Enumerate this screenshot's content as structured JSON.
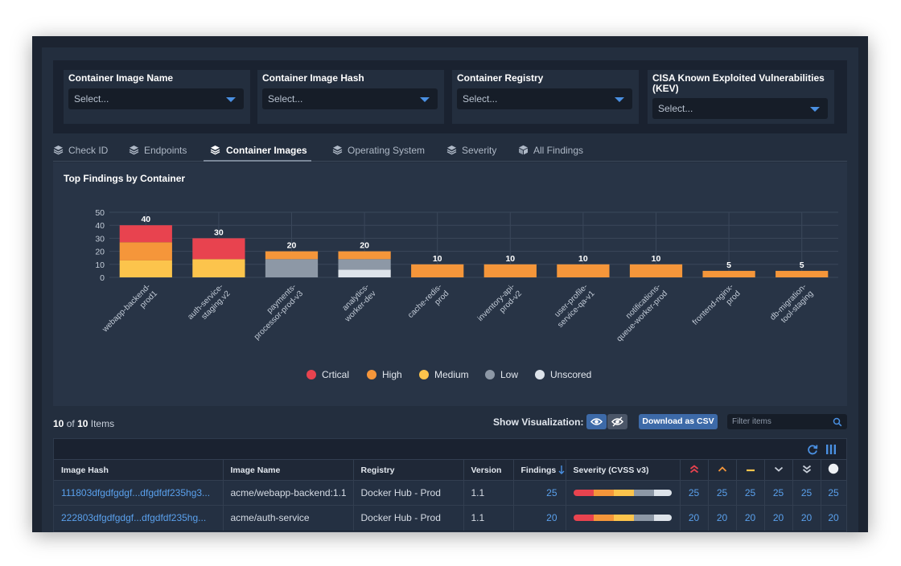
{
  "filters": [
    {
      "label": "Container Image Name",
      "placeholder": "Select..."
    },
    {
      "label": "Container Image Hash",
      "placeholder": "Select..."
    },
    {
      "label": "Container Registry",
      "placeholder": "Select..."
    },
    {
      "label": "CISA Known Exploited Vulnerabilities (KEV)",
      "placeholder": "Select..."
    }
  ],
  "tabs": [
    {
      "label": "Check ID",
      "icon": "layers-icon"
    },
    {
      "label": "Endpoints",
      "icon": "layers-icon"
    },
    {
      "label": "Container Images",
      "icon": "layers-icon",
      "active": true
    },
    {
      "label": "Operating System",
      "icon": "layers-icon"
    },
    {
      "label": "Severity",
      "icon": "layers-icon"
    },
    {
      "label": "All Findings",
      "icon": "cube-icon"
    }
  ],
  "chart_panel": {
    "title": "Top Findings by Container"
  },
  "chart_data": {
    "type": "bar",
    "stacked": true,
    "title": "Top Findings by Container",
    "categories": [
      "webapp-backend-prod1",
      "auth-service-staging.v2",
      "payments-processor-prod-v3",
      "analytics-worker-dev",
      "cache-redis-prod",
      "inventory-api-prod-v2",
      "user-profile-service-qa-v1",
      "notifications-queue-worker-prod",
      "frontend-nginx-prod",
      "db-migration-tool-staging"
    ],
    "totals": [
      40,
      30,
      20,
      20,
      10,
      10,
      10,
      10,
      5,
      5
    ],
    "series": [
      {
        "name": "Medium",
        "color": "#fcc44c",
        "values": [
          13,
          14,
          0,
          0,
          0,
          0,
          0,
          0,
          0,
          0
        ]
      },
      {
        "name": "Unscored",
        "color": "#dde3ea",
        "values": [
          0,
          0,
          0,
          6,
          0,
          0,
          0,
          0,
          0,
          0
        ]
      },
      {
        "name": "Low",
        "color": "#8d98a6",
        "values": [
          0,
          0,
          14,
          8,
          0,
          0,
          0,
          0,
          0,
          0
        ]
      },
      {
        "name": "High",
        "color": "#f5963a",
        "values": [
          14,
          0,
          6,
          6,
          10,
          10,
          10,
          10,
          5,
          5
        ]
      },
      {
        "name": "Crtical",
        "color": "#e8434f",
        "values": [
          13,
          16,
          0,
          0,
          0,
          0,
          0,
          0,
          0,
          0
        ]
      }
    ],
    "ylim": [
      0,
      50
    ],
    "yticks": [
      0,
      10,
      20,
      30,
      40,
      50
    ],
    "grid": true,
    "legend": [
      {
        "name": "Crtical",
        "color": "#e8434f"
      },
      {
        "name": "High",
        "color": "#f5963a"
      },
      {
        "name": "Medium",
        "color": "#fcc44c"
      },
      {
        "name": "Low",
        "color": "#8d98a6"
      },
      {
        "name": "Unscored",
        "color": "#dde3ea"
      }
    ],
    "legend_position": "bottom"
  },
  "toolbar": {
    "shown": "10",
    "of_label": "of",
    "total": "10",
    "items_label": "Items",
    "show_vis_label": "Show Visualization:",
    "csv_label": "Download as CSV",
    "filter_placeholder": "Filter items"
  },
  "table": {
    "headers": {
      "hash": "Image Hash",
      "name": "Image Name",
      "registry": "Registry",
      "version": "Version",
      "findings": "Findings",
      "severity": "Severity (CVSS v3)"
    },
    "rows": [
      {
        "hash": "111803dfgdfgdgf...dfgdfdf235hg3...",
        "name": "acme/webapp-backend:1.1",
        "registry": "Docker Hub - Prod",
        "version": "1.1",
        "findings": "25",
        "sev": [
          "25",
          "25",
          "25",
          "25",
          "25",
          "25"
        ]
      },
      {
        "hash": "222803dfgdfgdgf...dfgdfdf235hg...",
        "name": "acme/auth-service",
        "registry": "Docker Hub - Prod",
        "version": "1.1",
        "findings": "20",
        "sev": [
          "20",
          "20",
          "20",
          "20",
          "20",
          "20"
        ]
      }
    ]
  },
  "colors": {
    "critical": "#e8434f",
    "high": "#f5963a",
    "medium": "#fcc44c",
    "low": "#8d98a6",
    "unscored": "#dde3ea",
    "link": "#5aa0ec",
    "accent": "#4a90e2"
  }
}
